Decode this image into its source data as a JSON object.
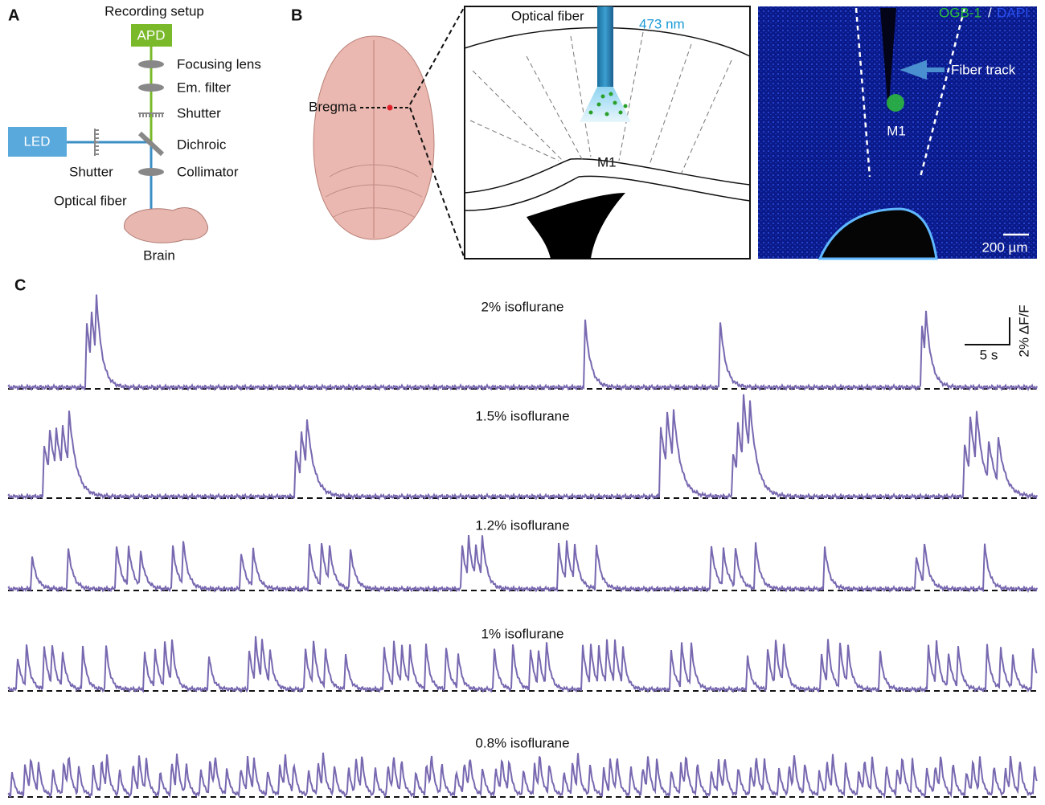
{
  "panel_a": {
    "label": "A",
    "title": "Recording setup",
    "apd": "APD",
    "focusing_lens": "Focusing lens",
    "em_filter": "Em. filter",
    "shutter_top": "Shutter",
    "dichroic": "Dichroic",
    "collimator": "Collimator",
    "led": "LED",
    "shutter_side": "Shutter",
    "optical_fiber": "Optical fiber",
    "brain": "Brain"
  },
  "panel_b": {
    "label": "B",
    "bregma": "Bregma",
    "optical_fiber": "Optical fiber",
    "wavelength": "473 nm",
    "region": "M1",
    "stain_green": "OGB-1",
    "separator": "/",
    "stain_blue": "DAPI",
    "fiber_track": "Fiber track",
    "image_region": "M1",
    "scale_bar": "200 µm"
  },
  "panel_c": {
    "label": "C",
    "traces": [
      {
        "condition": "2% isoflurane"
      },
      {
        "condition": "1.5% isoflurane"
      },
      {
        "condition": "1.2% isoflurane"
      },
      {
        "condition": "1% isoflurane"
      },
      {
        "condition": "0.8% isoflurane"
      }
    ],
    "scale_x": "5 s",
    "scale_y": "2% ΔF/F"
  }
}
